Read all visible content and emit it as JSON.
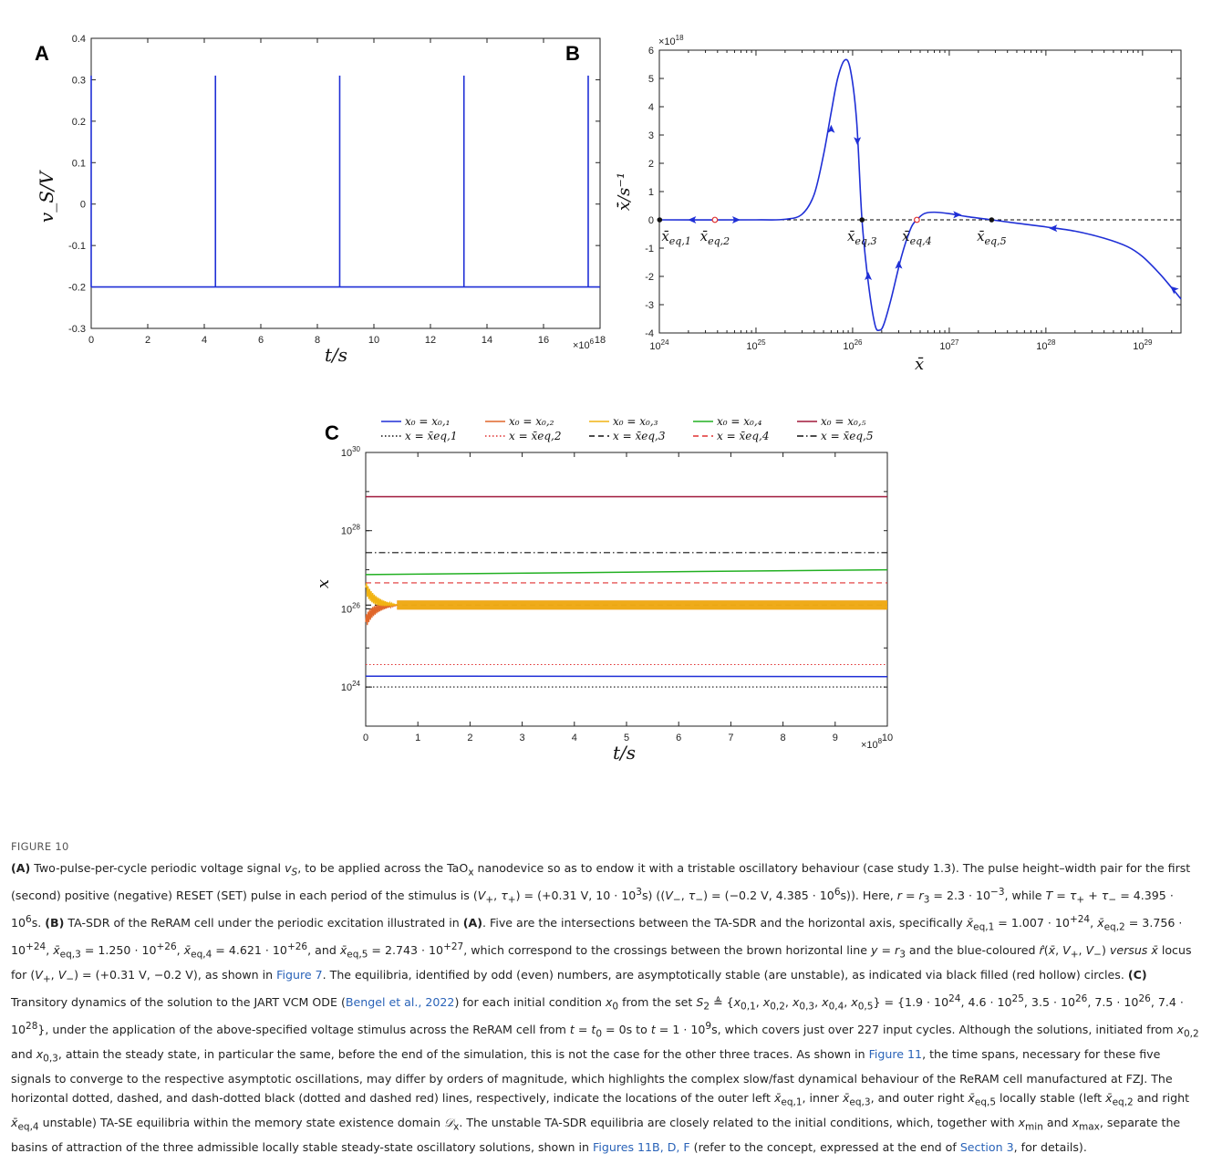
{
  "figure": {
    "panel_labels": [
      "A",
      "B",
      "C"
    ],
    "figure_label": "FIGURE 10",
    "caption_html": "<b>(A)</b> Two-pulse-per-cycle periodic voltage signal <i>v<sub>S</sub></i>, to be applied across the TaO<sub>x</sub> nanodevice so as to endow it with a tristable oscillatory behaviour (case study 1.3). The pulse height–width pair for the first (second) positive (negative) RESET (SET) pulse in each period of the stimulus is (<i>V</i><sub>+</sub>, <i>τ</i><sub>+</sub>) = (+0.31 V, 10 · 10<sup>3</sup>s) ((<i>V</i><sub>−</sub>, <i>τ</i><sub>−</sub>) = (−0.2 V, 4.385 · 10<sup>6</sup>s)). Here, <i>r</i> = <i>r</i><sub>3</sub> = 2.3 · 10<sup>−3</sup>, while <i>T</i> = <i>τ</i><sub>+</sub> + <i>τ</i><sub>−</sub> = 4.395 · 10<sup>6</sup>s. <b>(B)</b> TA-SDR of the ReRAM cell under the periodic excitation illustrated in <b>(A)</b>. Five are the intersections between the TA-SDR and the horizontal axis, specifically <i>x̄</i><sub>eq,1</sub> = 1.007 · 10<sup>+24</sup>, <i>x̄</i><sub>eq,2</sub> = 3.756 · 10<sup>+24</sup>, <i>x̄</i><sub>eq,3</sub> = 1.250 · 10<sup>+26</sup>, <i>x̄</i><sub>eq,4</sub> = 4.621 · 10<sup>+26</sup>, and <i>x̄</i><sub>eq,5</sub> = 2.743 · 10<sup>+27</sup>, which correspond to the crossings between the brown horizontal line <i>y</i> = <i>r</i><sub>3</sub> and the blue-coloured <i>r̂</i>(<i>x̄</i>, <i>V</i><sub>+</sub>, <i>V</i><sub>−</sub>) <i>versus x̄</i> locus for (<i>V</i><sub>+</sub>, <i>V</i><sub>−</sub>) = (+0.31 V, −0.2 V), as shown in <span class=\"link\">Figure 7</span>. The equilibria, identified by odd (even) numbers, are asymptotically stable (are unstable), as indicated via black filled (red hollow) circles. <b>(C)</b> Transitory dynamics of the solution to the JART VCM ODE (<span class=\"link\">Bengel et al., 2022</span>) for each initial condition <i>x</i><sub>0</sub> from the set <i>S</i><sub>2</sub> ≜ {<i>x</i><sub>0,1</sub>, <i>x</i><sub>0,2</sub>, <i>x</i><sub>0,3</sub>, <i>x</i><sub>0,4</sub>, <i>x</i><sub>0,5</sub>} = {1.9 · 10<sup>24</sup>, 4.6 · 10<sup>25</sup>, 3.5 · 10<sup>26</sup>, 7.5 · 10<sup>26</sup>, 7.4 · 10<sup>28</sup>}, under the application of the above-specified voltage stimulus across the ReRAM cell from <i>t</i> = <i>t</i><sub>0</sub> = 0s to <i>t</i> = 1 · 10<sup>9</sup>s, which covers just over 227 input cycles. Although the solutions, initiated from <i>x</i><sub>0,2</sub> and <i>x</i><sub>0,3</sub>, attain the steady state, in particular the same, before the end of the simulation, this is not the case for the other three traces. As shown in <span class=\"link\">Figure 11</span>, the time spans, necessary for these five signals to converge to the respective asymptotic oscillations, may differ by orders of magnitude, which highlights the complex slow/fast dynamical behaviour of the ReRAM cell manufactured at FZJ. The horizontal dotted, dashed, and dash-dotted black (dotted and dashed red) lines, respectively, indicate the locations of the outer left <i>x̄</i><sub>eq,1</sub>, inner <i>x̄</i><sub>eq,3</sub>, and outer right <i>x̄</i><sub>eq,5</sub> locally stable (left <i>x̄</i><sub>eq,2</sub> and right <i>x̄</i><sub>eq,4</sub> unstable) TA-SE equilibria within the memory state existence domain <i>𝒟</i><sub>x</sub>. The unstable TA-SDR equilibria are closely related to the initial conditions, which, together with <i>x</i><sub>min</sub> and <i>x</i><sub>max</sub>, separate the basins of attraction of the three admissible locally stable steady-state oscillatory solutions, shown in <span class=\"link\">Figures 11B, D, F</span> (refer to the concept, expressed at the end of <span class=\"link\">Section 3</span>, for details)."
  },
  "chart_data": [
    {
      "id": "A",
      "type": "line",
      "xlabel": "t/s",
      "ylabel": "v_S/V",
      "x_exponent_label": "×10",
      "x_exponent": "6",
      "xlim": [
        0,
        18
      ],
      "ylim": [
        -0.3,
        0.4
      ],
      "x_ticks": [
        "0",
        "2",
        "4",
        "6",
        "8",
        "10",
        "12",
        "14",
        "16",
        "18"
      ],
      "y_ticks": [
        "-0.3",
        "-0.2",
        "-0.1",
        "0",
        "0.1",
        "0.2",
        "0.3",
        "0.4"
      ],
      "series": [
        {
          "color": "#1f2fd6",
          "baseline": -0.2,
          "pulse_height": 0.31,
          "pulse_times": [
            0,
            4.395,
            8.79,
            13.185,
            17.58
          ]
        }
      ]
    },
    {
      "id": "B",
      "type": "line",
      "xlabel": "x̄",
      "ylabel": "x̄̇/s⁻¹",
      "xscale": "log",
      "y_exponent_label": "×10",
      "y_exponent": "18",
      "xlim": [
        1e+24,
        2.5e+29
      ],
      "ylim": [
        -4,
        6
      ],
      "x_ticks": [
        "10",
        "10",
        "10",
        "10",
        "10",
        "10"
      ],
      "x_tick_exps": [
        "24",
        "25",
        "26",
        "27",
        "28",
        "29"
      ],
      "y_ticks": [
        "-4",
        "-3",
        "-2",
        "-1",
        "0",
        "1",
        "2",
        "3",
        "4",
        "5",
        "6"
      ],
      "series": [
        {
          "color": "#1f2fd6",
          "points": [
            [
              1e+24,
              0
            ],
            [
              1e+25,
              0
            ],
            [
              2e+25,
              0.02
            ],
            [
              3e+25,
              0.2
            ],
            [
              4e+25,
              0.9
            ],
            [
              5e+25,
              2.3
            ],
            [
              6e+25,
              3.8
            ],
            [
              7e+25,
              5.0
            ],
            [
              8.3e+25,
              5.65
            ],
            [
              9.5e+25,
              5.3
            ],
            [
              1.1e+26,
              3.5
            ],
            [
              1.25e+26,
              0
            ],
            [
              1.45e+26,
              -2.2
            ],
            [
              1.7e+26,
              -3.7
            ],
            [
              1.9e+26,
              -3.9
            ],
            [
              2.1e+26,
              -3.7
            ],
            [
              2.5e+26,
              -2.8
            ],
            [
              3.2e+26,
              -1.3
            ],
            [
              4e+26,
              -0.3
            ],
            [
              4.621e+26,
              0
            ],
            [
              5.5e+26,
              0.22
            ],
            [
              7e+26,
              0.27
            ],
            [
              1e+27,
              0.22
            ],
            [
              1.5e+27,
              0.12
            ],
            [
              2.743e+27,
              0
            ],
            [
              5e+27,
              -0.12
            ],
            [
              1e+28,
              -0.25
            ],
            [
              2e+28,
              -0.4
            ],
            [
              4e+28,
              -0.65
            ],
            [
              7e+28,
              -0.95
            ],
            [
              1e+29,
              -1.3
            ],
            [
              1.5e+29,
              -1.9
            ],
            [
              2e+29,
              -2.4
            ],
            [
              2.5e+29,
              -2.8
            ]
          ]
        }
      ],
      "zero_line": {
        "color": "#000000",
        "style": "dashed",
        "y": 0
      },
      "equilibria": [
        {
          "label": "x̄",
          "sub": "eq,1",
          "x": 1.007e+24,
          "stable": true,
          "color": "#111111"
        },
        {
          "label": "x̄",
          "sub": "eq,2",
          "x": 3.756e+24,
          "stable": false,
          "color": "#e03030"
        },
        {
          "label": "x̄",
          "sub": "eq,3",
          "x": 1.25e+26,
          "stable": true,
          "color": "#111111"
        },
        {
          "label": "x̄",
          "sub": "eq,4",
          "x": 4.621e+26,
          "stable": false,
          "color": "#e03030"
        },
        {
          "label": "x̄",
          "sub": "eq,5",
          "x": 2.743e+27,
          "stable": true,
          "color": "#111111"
        }
      ],
      "arrows": [
        {
          "x": 2.2e+24,
          "y": 0,
          "dir": "left"
        },
        {
          "x": 6.2e+24,
          "y": 0,
          "dir": "right"
        },
        {
          "x": 6e+25,
          "y": 3.2,
          "dir": "up"
        },
        {
          "x": 1.12e+26,
          "y": 2.8,
          "dir": "down"
        },
        {
          "x": 1.45e+26,
          "y": -2.0,
          "dir": "up"
        },
        {
          "x": 3e+26,
          "y": -1.6,
          "dir": "up"
        },
        {
          "x": 1.2e+27,
          "y": 0.18,
          "dir": "right"
        },
        {
          "x": 1.2e+28,
          "y": -0.3,
          "dir": "left"
        },
        {
          "x": 2.1e+29,
          "y": -2.45,
          "dir": "upleft"
        }
      ]
    },
    {
      "id": "C",
      "type": "line",
      "xlabel": "t/s",
      "ylabel": "x",
      "yscale": "log",
      "x_exponent_label": "×10",
      "x_exponent": "8",
      "xlim": [
        0,
        10
      ],
      "ylim": [
        1e+23,
        1e+30
      ],
      "x_ticks": [
        "0",
        "1",
        "2",
        "3",
        "4",
        "5",
        "6",
        "7",
        "8",
        "9",
        "10"
      ],
      "y_ticks": [
        "10",
        "10",
        "10",
        "10"
      ],
      "y_tick_exps": [
        "24",
        "26",
        "28",
        "30"
      ],
      "legend_rows": [
        [
          {
            "text": "x₀ = x₀,₁",
            "color": "#1f2fd6",
            "style": "solid"
          },
          {
            "text": "x₀ = x₀,₂",
            "color": "#e0662a",
            "style": "solid"
          },
          {
            "text": "x₀ = x₀,₃",
            "color": "#f1b312",
            "style": "solid"
          },
          {
            "text": "x₀ = x₀,₄",
            "color": "#22b022",
            "style": "solid"
          },
          {
            "text": "x₀ = x₀,₅",
            "color": "#a0183a",
            "style": "solid"
          }
        ],
        [
          {
            "text": "x = x̄eq,1",
            "color": "#111111",
            "style": "dotted",
            "text_color": "#111111"
          },
          {
            "text": "x = x̄eq,2",
            "color": "#e03030",
            "style": "dotted",
            "text_color": "#e03030"
          },
          {
            "text": "x = x̄eq,3",
            "color": "#111111",
            "style": "dashed",
            "text_color": "#111111"
          },
          {
            "text": "x = x̄eq,4",
            "color": "#e03030",
            "style": "dashed",
            "text_color": "#e03030"
          },
          {
            "text": "x = x̄eq,5",
            "color": "#111111",
            "style": "dashdot",
            "text_color": "#111111"
          }
        ]
      ],
      "series": [
        {
          "name": "x₀ = x₀,₁",
          "color": "#1f2fd6",
          "start": 1.9e+24,
          "end": 1.85e+24,
          "style": "solid"
        },
        {
          "name": "x₀ = x₀,₂",
          "color": "#e0662a",
          "start": 4.6e+25,
          "end": 1.25e+26,
          "style": "solid",
          "transient": true
        },
        {
          "name": "x₀ = x₀,₃",
          "color": "#f1b312",
          "start": 3.5e+26,
          "end": 1.25e+26,
          "style": "solid",
          "transient": true
        },
        {
          "name": "x₀ = x₀,₄",
          "color": "#22b022",
          "start": 7.5e+26,
          "end": 1e+27,
          "style": "solid"
        },
        {
          "name": "x₀ = x₀,₅",
          "color": "#a0183a",
          "start": 7.4e+28,
          "end": 7.4e+28,
          "style": "solid"
        }
      ],
      "hlines": [
        {
          "y": 1.007e+24,
          "color": "#111111",
          "style": "dotted"
        },
        {
          "y": 3.756e+24,
          "color": "#e03030",
          "style": "dotted"
        },
        {
          "y": 1.25e+26,
          "color": "#111111",
          "style": "dashed"
        },
        {
          "y": 4.621e+26,
          "color": "#e03030",
          "style": "dashed"
        },
        {
          "y": 2.743e+27,
          "color": "#111111",
          "style": "dashdot"
        }
      ]
    }
  ]
}
